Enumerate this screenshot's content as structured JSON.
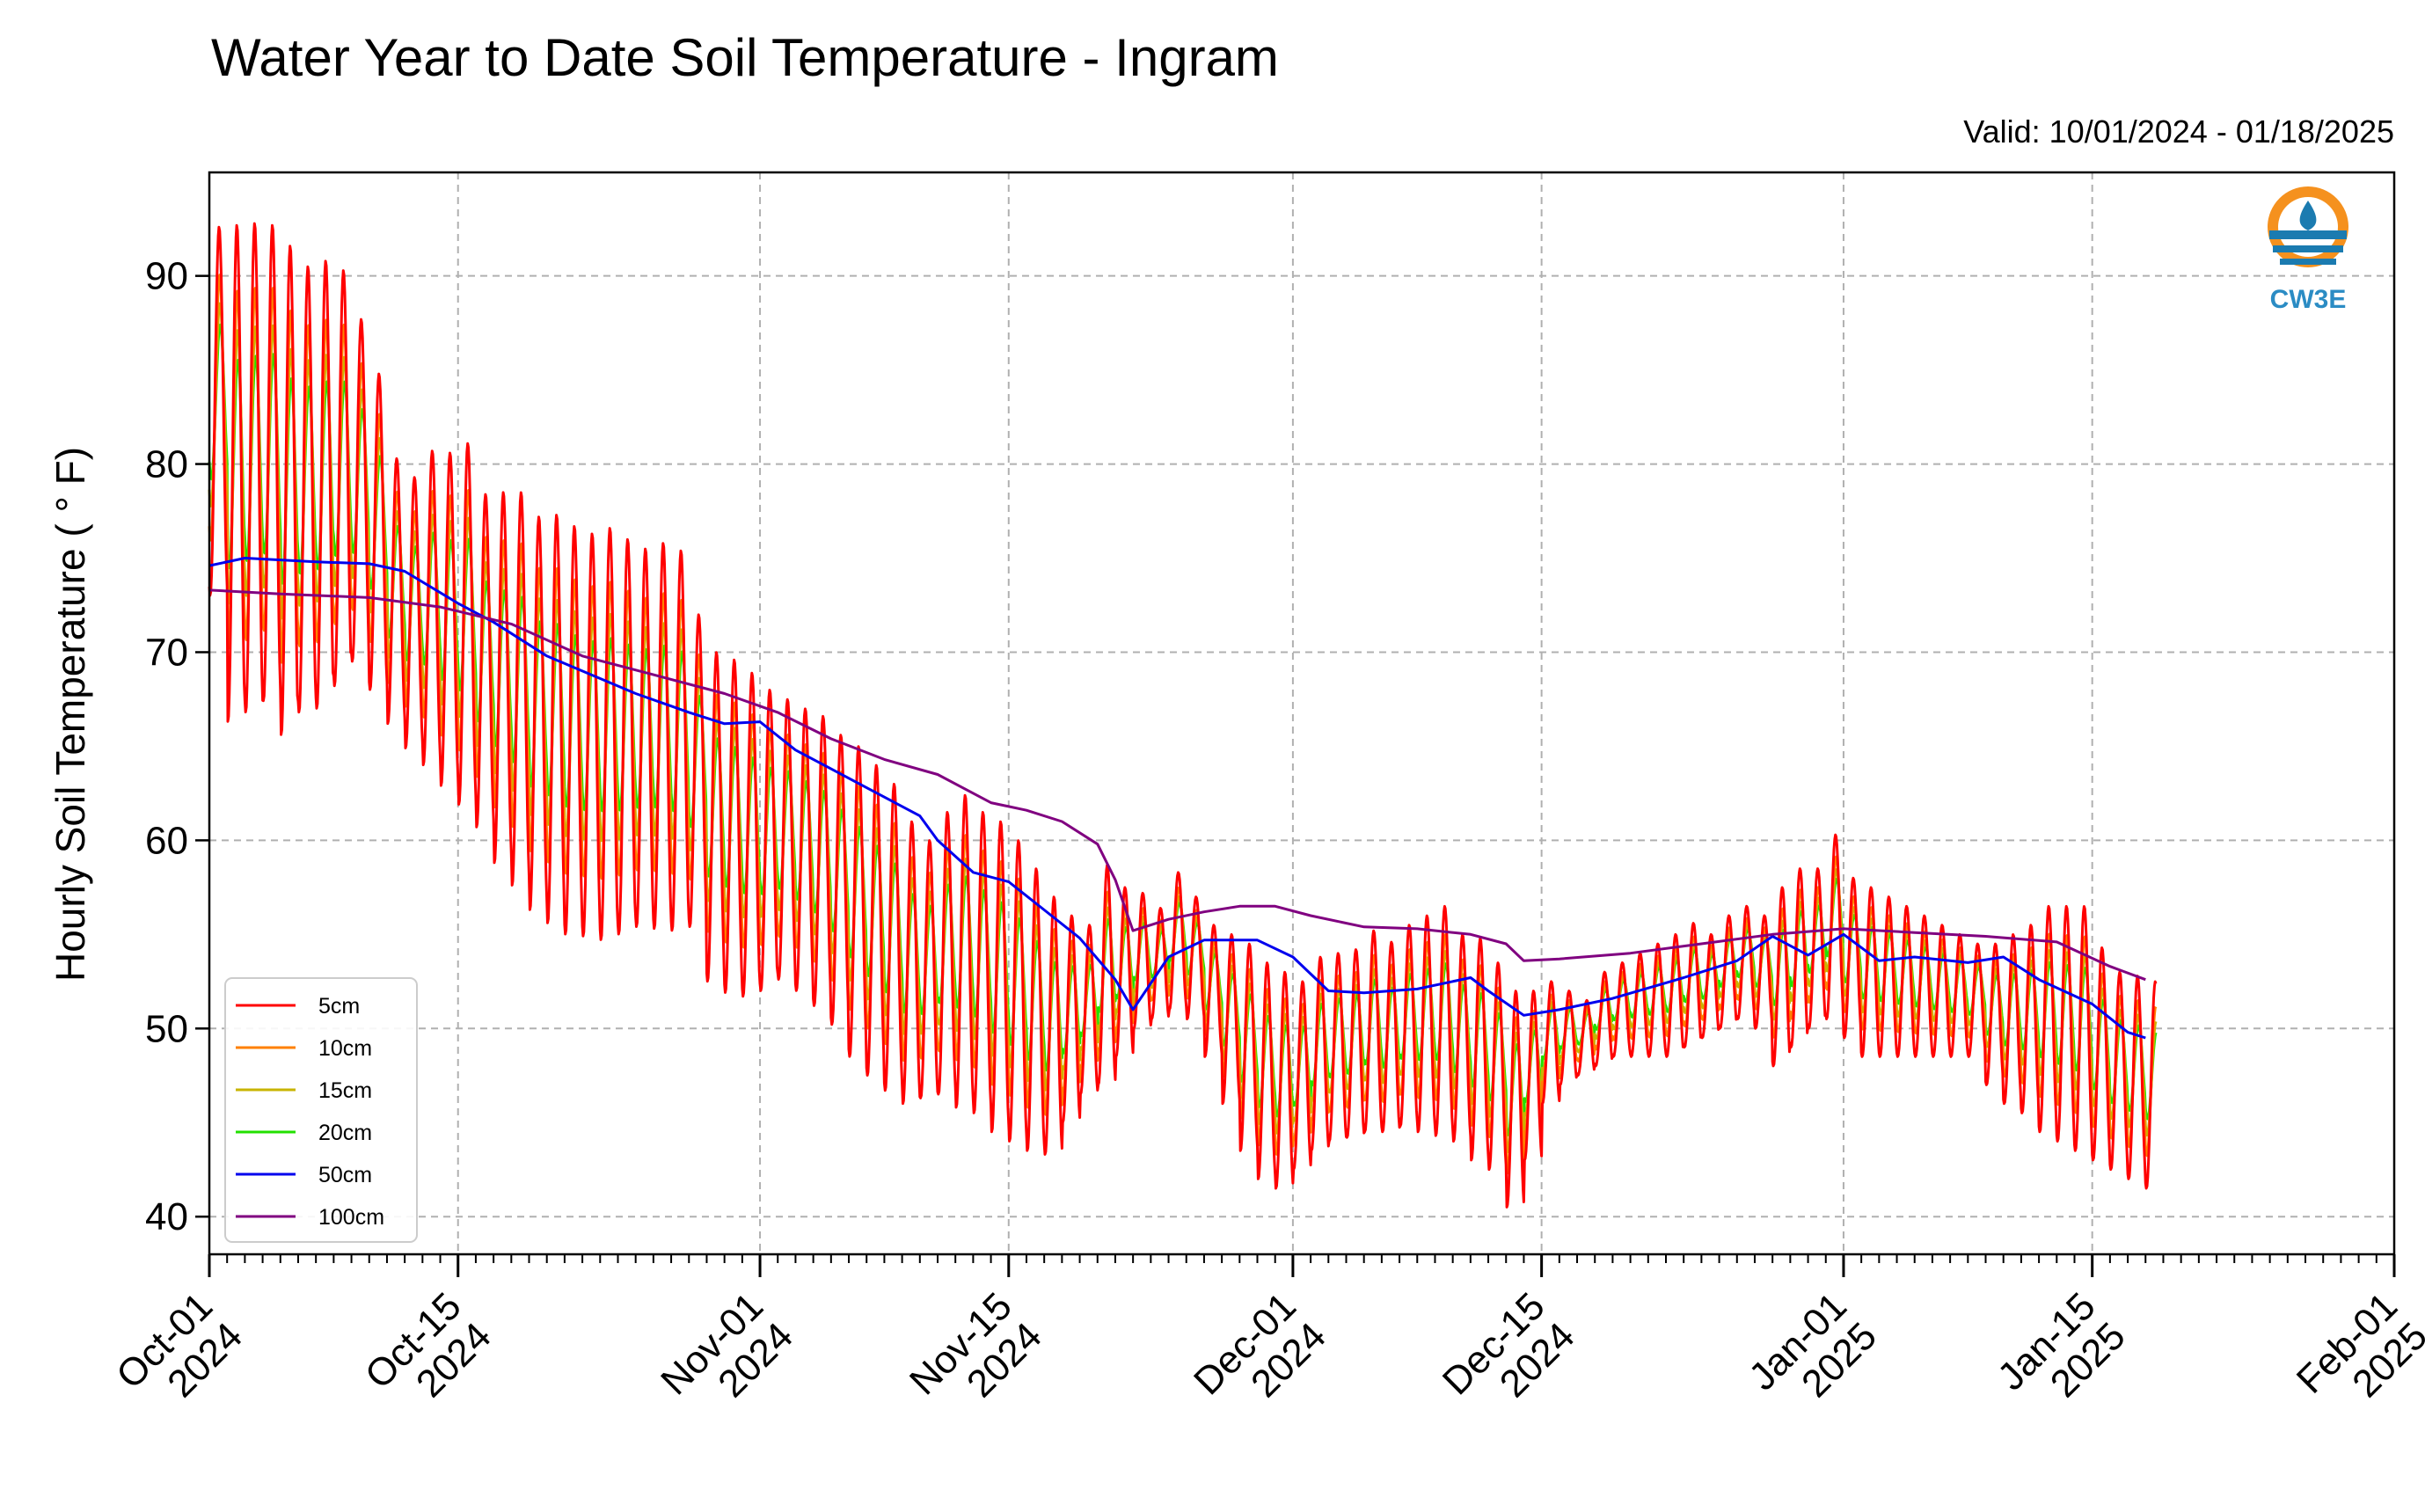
{
  "chart_data": {
    "type": "line",
    "title": "Water Year to Date Soil Temperature - Ingram",
    "subtitle": "Valid: 10/01/2024 - 01/18/2025",
    "ylabel": "Hourly Soil Temperature ( ° F)",
    "xlabel": "",
    "x_range": [
      "2024-10-01",
      "2025-02-01"
    ],
    "ylim": [
      38,
      95.5
    ],
    "yticks": [
      40,
      50,
      60,
      70,
      80,
      90
    ],
    "xtick_labels": [
      {
        "date": "2024-10-01",
        "line1": "Oct-01",
        "line2": "2024"
      },
      {
        "date": "2024-10-15",
        "line1": "Oct-15",
        "line2": "2024"
      },
      {
        "date": "2024-11-01",
        "line1": "Nov-01",
        "line2": "2024"
      },
      {
        "date": "2024-11-15",
        "line1": "Nov-15",
        "line2": "2024"
      },
      {
        "date": "2024-12-01",
        "line1": "Dec-01",
        "line2": "2024"
      },
      {
        "date": "2024-12-15",
        "line1": "Dec-15",
        "line2": "2024"
      },
      {
        "date": "2025-01-01",
        "line1": "Jan-01",
        "line2": "2025"
      },
      {
        "date": "2025-01-15",
        "line1": "Jan-15",
        "line2": "2025"
      },
      {
        "date": "2025-02-01",
        "line1": "Feb-01",
        "line2": "2025"
      }
    ],
    "grid": true,
    "legend_position": "lower-left",
    "logo_text": "CW3E",
    "series": [
      {
        "name": "5cm",
        "color": "#ff0000",
        "amp_scale": 1.0,
        "offset": 0.0
      },
      {
        "name": "10cm",
        "color": "#ff8000",
        "amp_scale": 0.72,
        "offset": 0.2
      },
      {
        "name": "15cm",
        "color": "#c8b400",
        "amp_scale": 0.55,
        "offset": 0.35
      },
      {
        "name": "20cm",
        "color": "#22e000",
        "amp_scale": 0.42,
        "offset": 0.5
      },
      {
        "name": "50cm",
        "color": "#0000ee",
        "points": [
          [
            "2024-10-01",
            74.6
          ],
          [
            "2024-10-03",
            75.0
          ],
          [
            "2024-10-07",
            74.8
          ],
          [
            "2024-10-10",
            74.7
          ],
          [
            "2024-10-12",
            74.3
          ],
          [
            "2024-10-15",
            72.6
          ],
          [
            "2024-10-17",
            71.6
          ],
          [
            "2024-10-20",
            69.8
          ],
          [
            "2024-10-22",
            69.0
          ],
          [
            "2024-10-25",
            67.8
          ],
          [
            "2024-10-28",
            66.8
          ],
          [
            "2024-10-30",
            66.2
          ],
          [
            "2024-11-01",
            66.3
          ],
          [
            "2024-11-03",
            64.8
          ],
          [
            "2024-11-05",
            63.8
          ],
          [
            "2024-11-08",
            62.3
          ],
          [
            "2024-11-10",
            61.3
          ],
          [
            "2024-11-11",
            60.0
          ],
          [
            "2024-11-13",
            58.3
          ],
          [
            "2024-11-15",
            57.8
          ],
          [
            "2024-11-17",
            56.3
          ],
          [
            "2024-11-19",
            54.8
          ],
          [
            "2024-11-21",
            52.6
          ],
          [
            "2024-11-22",
            51.0
          ],
          [
            "2024-11-24",
            53.8
          ],
          [
            "2024-11-26",
            54.7
          ],
          [
            "2024-11-29",
            54.7
          ],
          [
            "2024-12-01",
            53.8
          ],
          [
            "2024-12-03",
            52.0
          ],
          [
            "2024-12-05",
            51.9
          ],
          [
            "2024-12-08",
            52.1
          ],
          [
            "2024-12-11",
            52.7
          ],
          [
            "2024-12-12",
            52.0
          ],
          [
            "2024-12-14",
            50.7
          ],
          [
            "2024-12-16",
            51.0
          ],
          [
            "2024-12-19",
            51.6
          ],
          [
            "2024-12-23",
            52.7
          ],
          [
            "2024-12-26",
            53.6
          ],
          [
            "2024-12-28",
            54.9
          ],
          [
            "2024-12-30",
            53.9
          ],
          [
            "2025-01-01",
            55.0
          ],
          [
            "2025-01-03",
            53.6
          ],
          [
            "2025-01-05",
            53.8
          ],
          [
            "2025-01-08",
            53.5
          ],
          [
            "2025-01-10",
            53.8
          ],
          [
            "2025-01-12",
            52.6
          ],
          [
            "2025-01-15",
            51.3
          ],
          [
            "2025-01-17",
            49.8
          ],
          [
            "2025-01-18",
            49.5
          ]
        ]
      },
      {
        "name": "100cm",
        "color": "#800080",
        "points": [
          [
            "2024-10-01",
            73.3
          ],
          [
            "2024-10-05",
            73.1
          ],
          [
            "2024-10-10",
            72.9
          ],
          [
            "2024-10-14",
            72.4
          ],
          [
            "2024-10-18",
            71.5
          ],
          [
            "2024-10-22",
            69.8
          ],
          [
            "2024-10-26",
            68.8
          ],
          [
            "2024-10-30",
            67.8
          ],
          [
            "2024-11-02",
            66.8
          ],
          [
            "2024-11-05",
            65.4
          ],
          [
            "2024-11-08",
            64.3
          ],
          [
            "2024-11-11",
            63.5
          ],
          [
            "2024-11-14",
            62.0
          ],
          [
            "2024-11-16",
            61.6
          ],
          [
            "2024-11-18",
            61.0
          ],
          [
            "2024-11-20",
            59.8
          ],
          [
            "2024-11-21",
            57.9
          ],
          [
            "2024-11-22",
            55.2
          ],
          [
            "2024-11-24",
            55.8
          ],
          [
            "2024-11-26",
            56.2
          ],
          [
            "2024-11-28",
            56.5
          ],
          [
            "2024-11-30",
            56.5
          ],
          [
            "2024-12-02",
            56.0
          ],
          [
            "2024-12-05",
            55.4
          ],
          [
            "2024-12-08",
            55.3
          ],
          [
            "2024-12-11",
            55.0
          ],
          [
            "2024-12-13",
            54.5
          ],
          [
            "2024-12-14",
            53.6
          ],
          [
            "2024-12-16",
            53.7
          ],
          [
            "2024-12-20",
            54.0
          ],
          [
            "2024-12-24",
            54.5
          ],
          [
            "2024-12-28",
            55.0
          ],
          [
            "2025-01-01",
            55.3
          ],
          [
            "2025-01-05",
            55.1
          ],
          [
            "2025-01-09",
            54.9
          ],
          [
            "2025-01-13",
            54.6
          ],
          [
            "2025-01-16",
            53.3
          ],
          [
            "2025-01-18",
            52.6
          ]
        ]
      }
    ],
    "surface_5cm_daily": {
      "start": "2024-10-01",
      "max": [
        92.6,
        92.7,
        92.8,
        92.7,
        91.6,
        90.5,
        90.8,
        90.3,
        87.7,
        84.8,
        80.3,
        79.3,
        80.7,
        80.6,
        81.1,
        78.4,
        78.5,
        78.5,
        77.2,
        77.3,
        76.7,
        76.3,
        76.6,
        76.0,
        75.5,
        75.8,
        75.4,
        72.0,
        70.0,
        69.6,
        68.9,
        68.0,
        67.5,
        67.0,
        66.6,
        65.6,
        65.0,
        64.0,
        63.0,
        61.0,
        60.0,
        61.5,
        62.4,
        61.5,
        61.0,
        60.0,
        58.5,
        57.0,
        56.0,
        55.5,
        58.7,
        57.5,
        57.2,
        56.4,
        58.3,
        57.0,
        55.5,
        55.0,
        54.5,
        53.5,
        53.0,
        52.5,
        53.8,
        54.0,
        54.2,
        55.2,
        54.6,
        55.5,
        56.0,
        56.5,
        55.0,
        54.8,
        53.5,
        52.0,
        52.0,
        52.5,
        52.0,
        51.5,
        53.0,
        53.5,
        54.0,
        54.5,
        55.0,
        55.6,
        55.0,
        56.0,
        56.5,
        56.0,
        57.5,
        58.5,
        58.5,
        60.3,
        58.0,
        57.5,
        57.0,
        56.5,
        56.0,
        55.5,
        55.0,
        54.5,
        54.5,
        55.0,
        55.5,
        56.5,
        56.5,
        56.5,
        54.3,
        53.0,
        52.8,
        52.5,
        52.0,
        51.5,
        51.5,
        51.5,
        51.0,
        51.0,
        51.0,
        51.0
      ],
      "min": [
        73.0,
        66.3,
        66.8,
        67.4,
        65.6,
        66.8,
        67.0,
        68.2,
        69.5,
        68.0,
        66.2,
        64.9,
        64.0,
        62.9,
        61.9,
        60.7,
        58.8,
        57.6,
        56.3,
        55.6,
        55.0,
        54.9,
        54.7,
        55.0,
        55.4,
        55.3,
        55.2,
        55.4,
        52.5,
        51.9,
        51.7,
        52.0,
        52.6,
        52.0,
        51.2,
        50.2,
        48.5,
        47.5,
        46.7,
        46.0,
        46.3,
        46.5,
        45.8,
        45.5,
        44.5,
        44.0,
        43.5,
        43.3,
        45.0,
        46.5,
        47.0,
        48.5,
        50.0,
        50.5,
        51.0,
        50.5,
        48.5,
        46.0,
        43.5,
        42.0,
        41.5,
        42.5,
        43.5,
        44.0,
        44.2,
        44.5,
        44.5,
        44.8,
        44.5,
        44.3,
        44.0,
        43.0,
        42.5,
        40.5,
        43.0,
        46.0,
        47.0,
        47.5,
        48.0,
        48.5,
        48.5,
        48.5,
        48.5,
        49.0,
        49.5,
        50.0,
        50.5,
        50.0,
        48.0,
        49.0,
        50.0,
        50.5,
        49.5,
        48.5,
        48.5,
        48.5,
        48.5,
        48.5,
        48.5,
        48.5,
        47.0,
        46.0,
        45.5,
        44.5,
        44.0,
        43.5,
        43.0,
        42.5,
        42.0,
        41.5,
        41.0,
        40.8,
        40.5,
        41.0,
        41.5,
        42.0
      ]
    }
  }
}
